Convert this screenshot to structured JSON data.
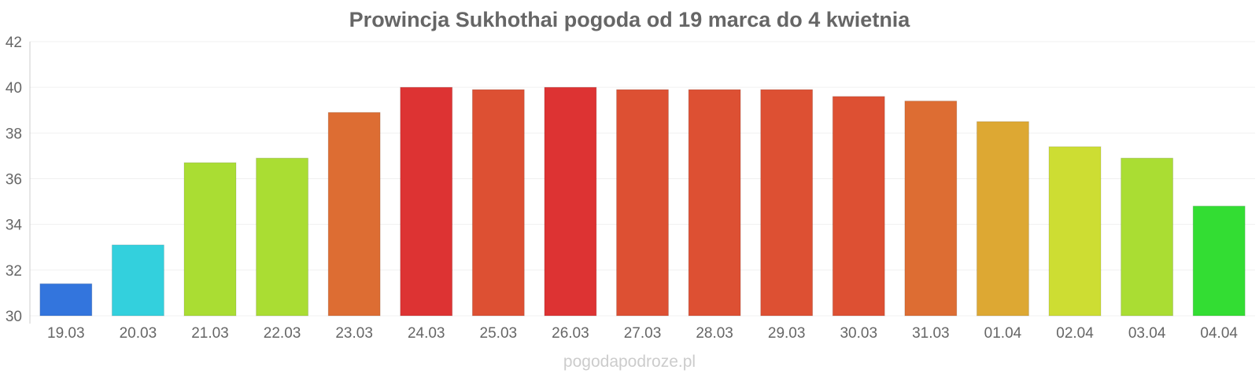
{
  "watermark": "pogodapodroze.pl",
  "chart_data": {
    "type": "bar",
    "title": "Prowincja Sukhothai pogoda od 19 marca do 4 kwietnia",
    "xlabel": "",
    "ylabel": "",
    "ylim": [
      30,
      42
    ],
    "yticks": [
      "30",
      "32",
      "34",
      "36",
      "38",
      "40",
      "42"
    ],
    "grid": true,
    "legend": "none",
    "categories": [
      "19.03",
      "20.03",
      "21.03",
      "22.03",
      "23.03",
      "24.03",
      "25.03",
      "26.03",
      "27.03",
      "28.03",
      "29.03",
      "30.03",
      "31.03",
      "01.04",
      "02.04",
      "03.04",
      "04.04"
    ],
    "values": [
      31.4,
      33.1,
      36.7,
      36.9,
      38.9,
      40.0,
      39.9,
      40.0,
      39.9,
      39.9,
      39.9,
      39.6,
      39.4,
      38.5,
      37.4,
      36.9,
      34.8
    ],
    "colors": [
      "#3375dd",
      "#33d0dd",
      "#aadd33",
      "#aadd33",
      "#dd6d33",
      "#dd3333",
      "#dd5033",
      "#dd3333",
      "#dd5033",
      "#dd5033",
      "#dd5033",
      "#dd5033",
      "#dd6d33",
      "#dda833",
      "#cddd33",
      "#aadd33",
      "#33dd33"
    ]
  }
}
